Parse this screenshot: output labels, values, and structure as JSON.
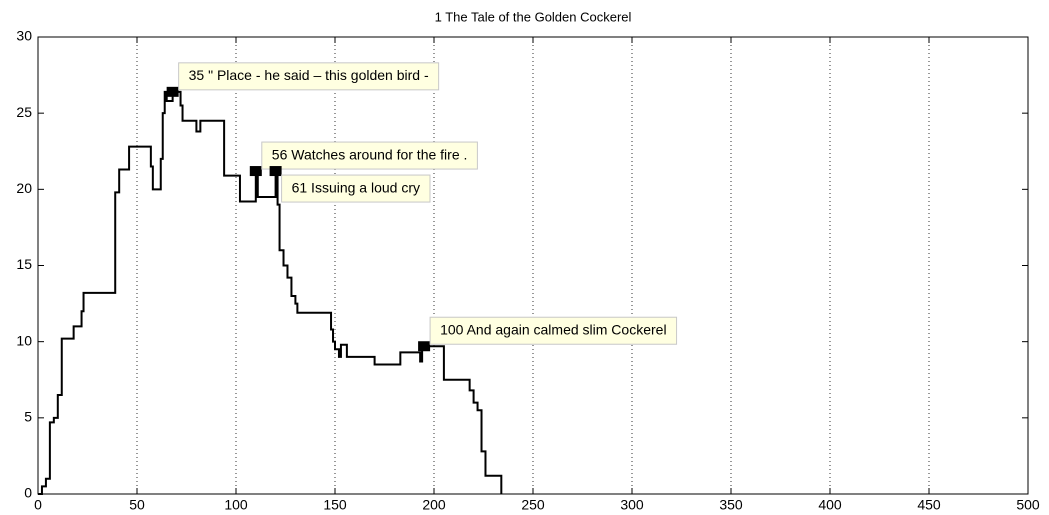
{
  "chart_data": {
    "type": "line",
    "title": "1 The Tale of the Golden Cockerel",
    "x": [
      0,
      2,
      4,
      6,
      8,
      10,
      12,
      17,
      18,
      21,
      22,
      23,
      38,
      39,
      41,
      44,
      46,
      55,
      57,
      58,
      60,
      62,
      63,
      64,
      65,
      67,
      68,
      70,
      72,
      73,
      79,
      80,
      82,
      93,
      94,
      100,
      102,
      108,
      110,
      111,
      118,
      120,
      121,
      122,
      124,
      126,
      128,
      130,
      131,
      146,
      148,
      149,
      150,
      152,
      153,
      155,
      156,
      167,
      170,
      182,
      183,
      192,
      193,
      194,
      198,
      202,
      205,
      217,
      218,
      220,
      222,
      224,
      226,
      232,
      234
    ],
    "values": [
      0,
      0.5,
      1,
      4.7,
      5,
      6.5,
      10.2,
      10.2,
      11,
      11,
      12,
      13.2,
      13.2,
      19.8,
      21.3,
      21.3,
      22.8,
      22.8,
      21.5,
      20,
      20,
      22,
      25,
      26.4,
      25.8,
      25.8,
      26.4,
      26.4,
      25.5,
      24.5,
      24.5,
      23.8,
      24.5,
      24.5,
      20.9,
      20.9,
      19.2,
      19.2,
      21.2,
      19.5,
      19.5,
      21.2,
      19,
      16,
      15,
      14.2,
      13,
      12.5,
      11.9,
      11.9,
      10.8,
      10,
      9.5,
      9,
      9.8,
      9.8,
      9,
      9,
      8.5,
      8.5,
      9.3,
      9.3,
      8.7,
      9.7,
      9.7,
      9.7,
      7.5,
      7.5,
      6.8,
      6,
      5.5,
      2.8,
      1.2,
      1.2,
      0
    ],
    "color": "#000000",
    "xlim": [
      0,
      500
    ],
    "xticks": [
      0,
      50,
      100,
      150,
      200,
      250,
      300,
      350,
      400,
      450,
      500
    ],
    "ylim": [
      0,
      30
    ],
    "yticks": [
      0,
      5,
      10,
      15,
      20,
      25,
      30
    ],
    "grid": "x",
    "annotations": [
      {
        "text": "35 \" Place - he said – this golden bird -",
        "x": 68,
        "y": 26.4
      },
      {
        "text": "56 Watches around for the fire .",
        "x": 110,
        "y": 21.2
      },
      {
        "text": "61 Issuing a loud cry",
        "x": 120,
        "y": 21.2
      },
      {
        "text": "100 And again calmed slim Cockerel",
        "x": 195,
        "y": 9.7
      }
    ]
  }
}
